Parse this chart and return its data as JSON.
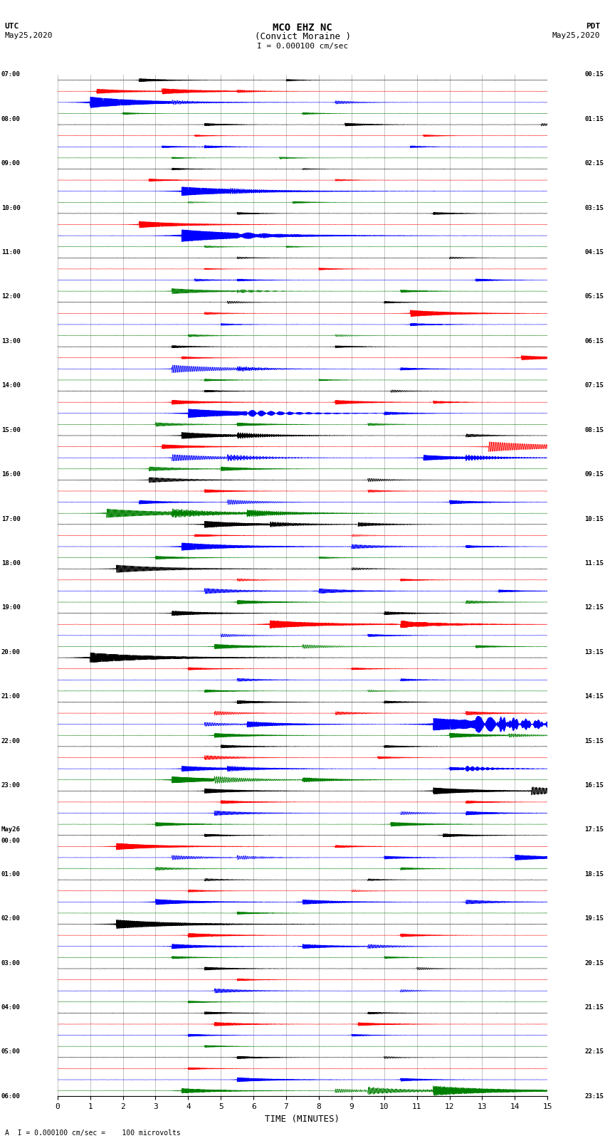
{
  "title_line1": "MCO EHZ NC",
  "title_line2": "(Convict Moraine )",
  "scale_label": "I = 0.000100 cm/sec",
  "utc_label": "UTC",
  "utc_date": "May25,2020",
  "pdt_label": "PDT",
  "pdt_date": "May25,2020",
  "footer_label": "A  I = 0.000100 cm/sec =    100 microvolts",
  "xlabel": "TIME (MINUTES)",
  "x_ticks": [
    0,
    1,
    2,
    3,
    4,
    5,
    6,
    7,
    8,
    9,
    10,
    11,
    12,
    13,
    14,
    15
  ],
  "x_lim": [
    0,
    15
  ],
  "colors": [
    "black",
    "red",
    "blue",
    "green"
  ],
  "background": "white",
  "n_traces": 92,
  "noise_amplitude": 0.012,
  "fig_width": 8.5,
  "fig_height": 16.13,
  "dpi": 100,
  "left_times": [
    "07:00",
    "",
    "",
    "",
    "08:00",
    "",
    "",
    "",
    "09:00",
    "",
    "",
    "",
    "10:00",
    "",
    "",
    "",
    "11:00",
    "",
    "",
    "",
    "12:00",
    "",
    "",
    "",
    "13:00",
    "",
    "",
    "",
    "14:00",
    "",
    "",
    "",
    "15:00",
    "",
    "",
    "",
    "16:00",
    "",
    "",
    "",
    "17:00",
    "",
    "",
    "",
    "18:00",
    "",
    "",
    "",
    "19:00",
    "",
    "",
    "",
    "20:00",
    "",
    "",
    "",
    "21:00",
    "",
    "",
    "",
    "22:00",
    "",
    "",
    "",
    "23:00",
    "",
    "",
    "",
    "May26",
    "00:00",
    "",
    "",
    "01:00",
    "",
    "",
    "",
    "02:00",
    "",
    "",
    "",
    "03:00",
    "",
    "",
    "",
    "04:00",
    "",
    "",
    "",
    "05:00",
    "",
    "",
    "",
    "06:00",
    "",
    "",
    ""
  ],
  "right_times": [
    "00:15",
    "",
    "",
    "",
    "01:15",
    "",
    "",
    "",
    "02:15",
    "",
    "",
    "",
    "03:15",
    "",
    "",
    "",
    "04:15",
    "",
    "",
    "",
    "05:15",
    "",
    "",
    "",
    "06:15",
    "",
    "",
    "",
    "07:15",
    "",
    "",
    "",
    "08:15",
    "",
    "",
    "",
    "09:15",
    "",
    "",
    "",
    "10:15",
    "",
    "",
    "",
    "11:15",
    "",
    "",
    "",
    "12:15",
    "",
    "",
    "",
    "13:15",
    "",
    "",
    "",
    "14:15",
    "",
    "",
    "",
    "15:15",
    "",
    "",
    "",
    "16:15",
    "",
    "",
    "",
    "17:15",
    "",
    "",
    "",
    "18:15",
    "",
    "",
    "",
    "19:15",
    "",
    "",
    "",
    "20:15",
    "",
    "",
    "",
    "21:15",
    "",
    "",
    "",
    "22:15",
    "",
    "",
    "",
    "23:15",
    "",
    "",
    ""
  ],
  "seed": 42
}
